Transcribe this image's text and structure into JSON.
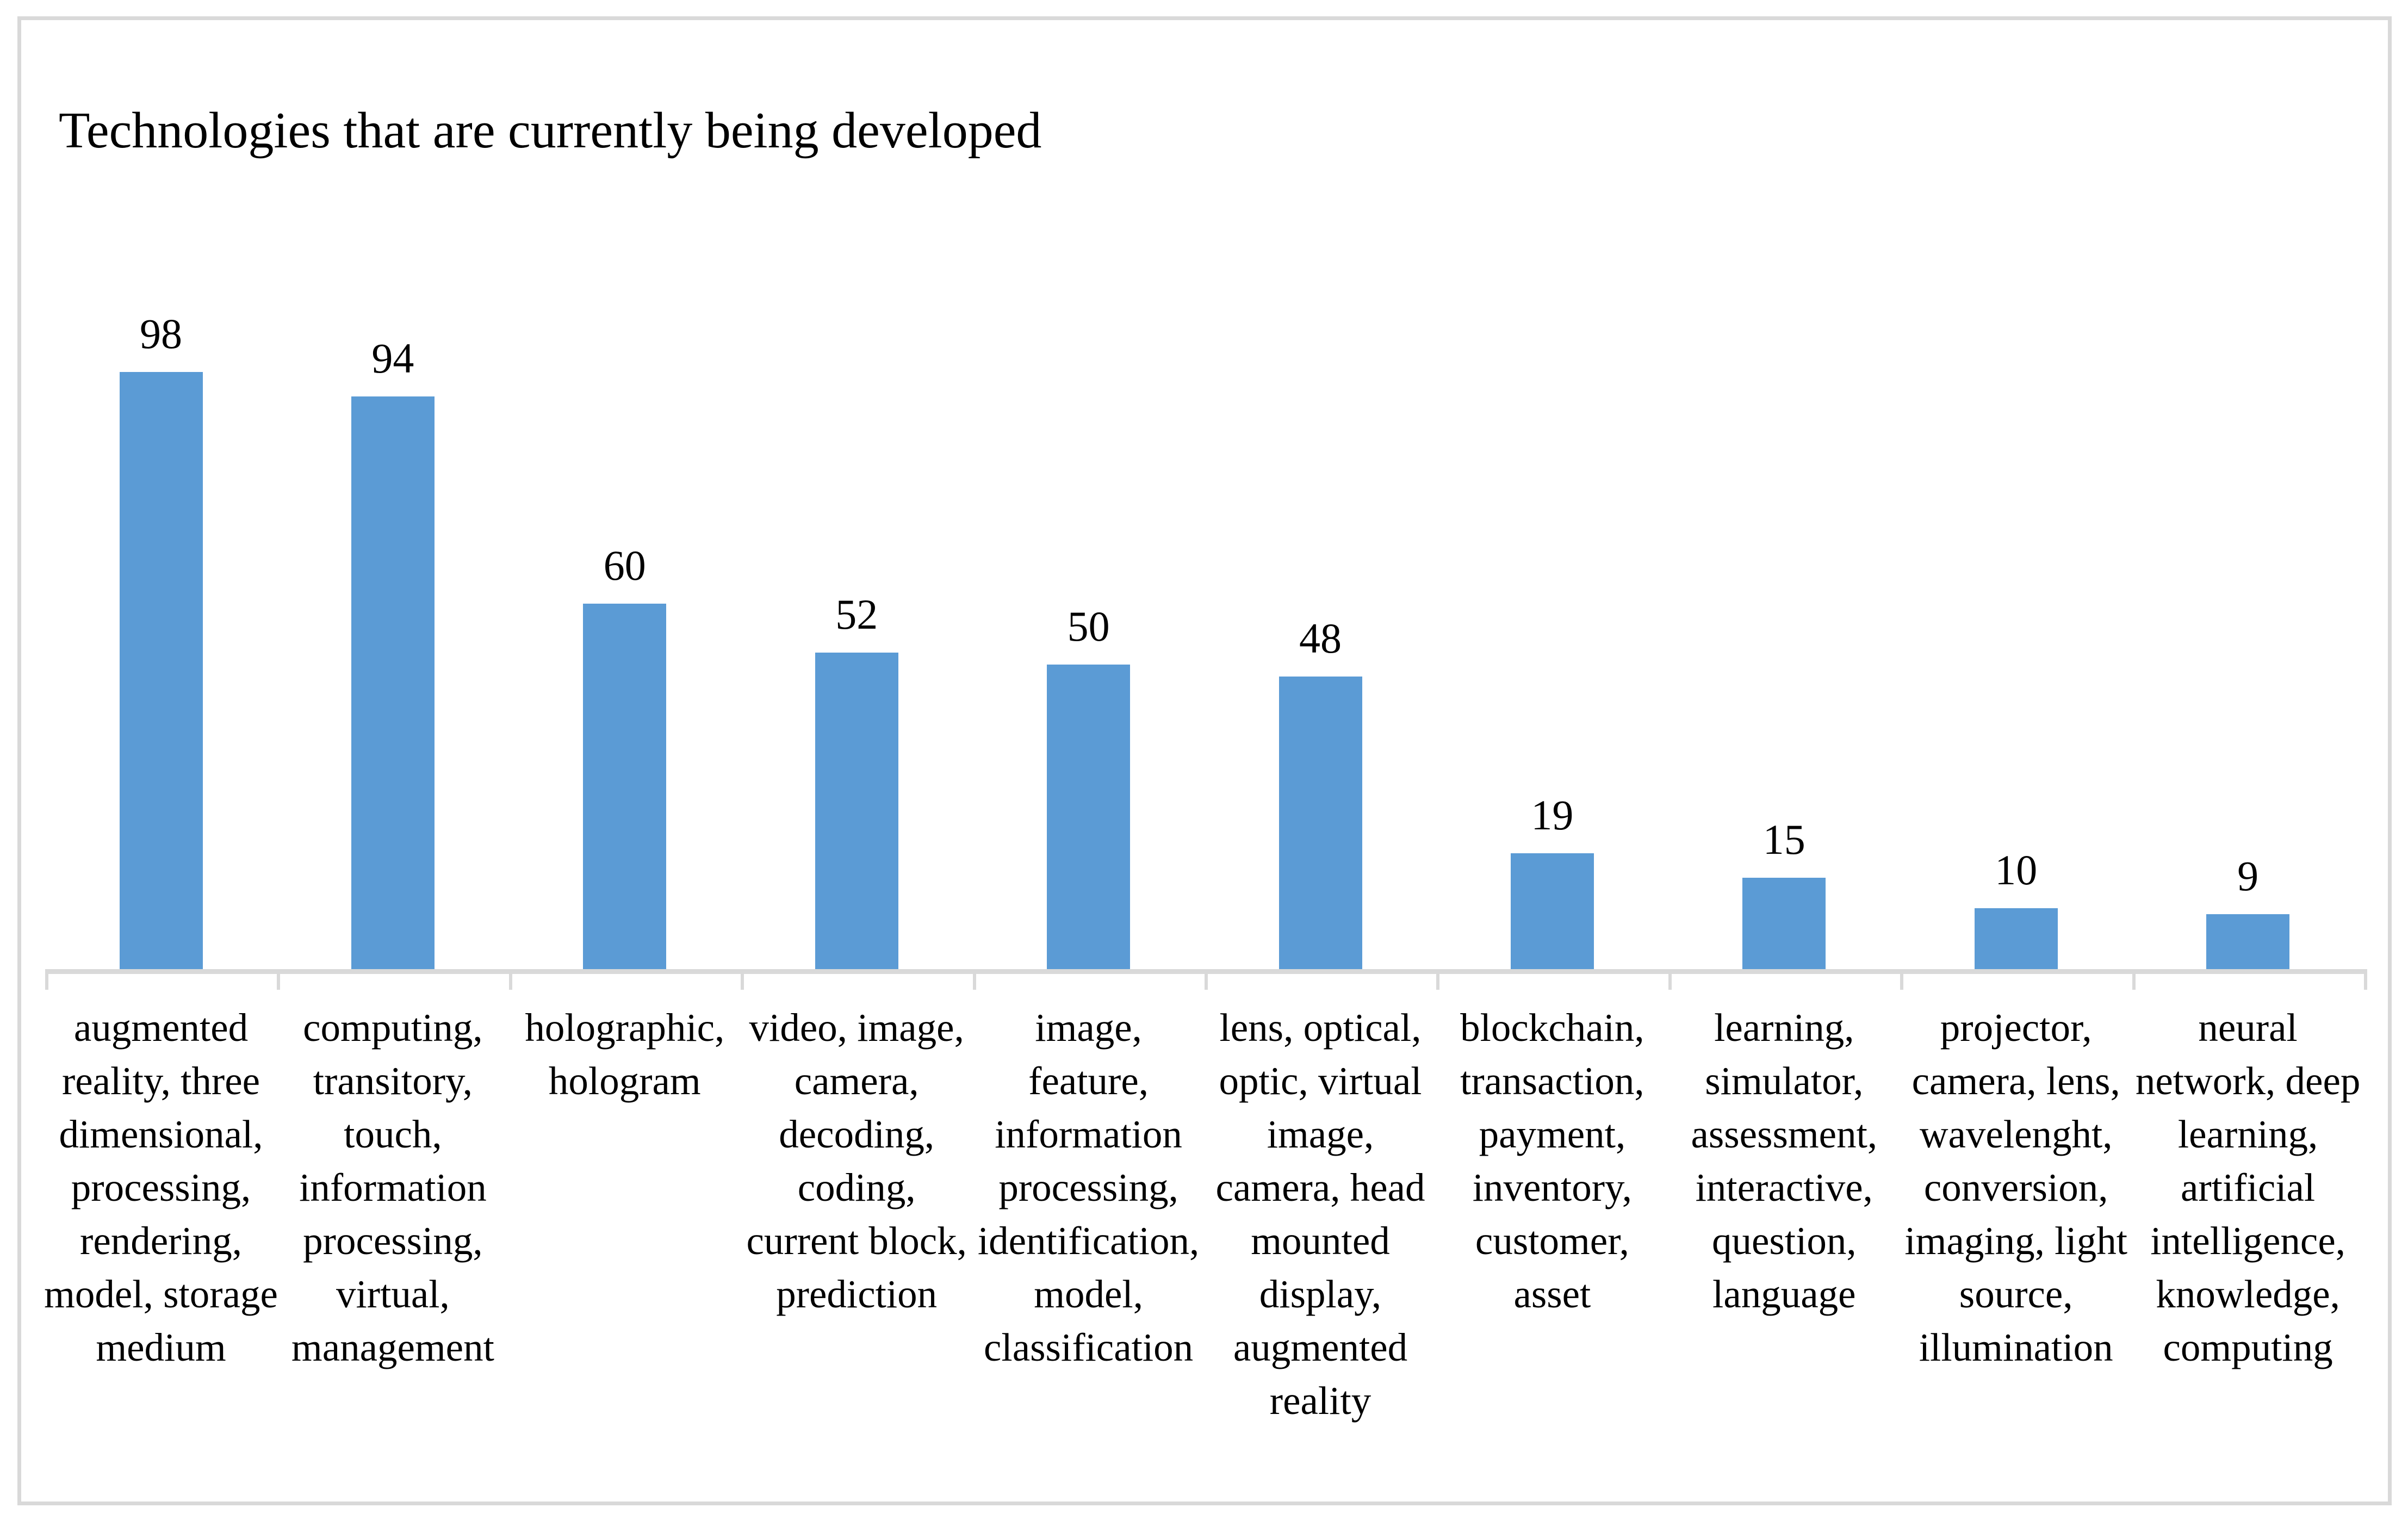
{
  "chart_data": {
    "type": "bar",
    "title": "Technologies that are currently being developed",
    "categories": [
      "augmented reality, three dimensional, processing, rendering, model, storage medium",
      "computing, transitory, touch, information processing, virtual, management",
      "holographic, hologram",
      "video, image, camera, decoding, coding, current block, prediction",
      "image, feature, information processing, identification, model, classification",
      "lens, optical, optic, virtual image, camera, head mounted display, augmented reality",
      "blockchain, transaction, payment, inventory, customer, asset",
      "learning, simulator, assessment, interactive, question, language",
      "projector, camera, lens, wavelenght, conversion, imaging, light source, illumination",
      "neural network, deep learning, artificial intelligence, knowledge, computing"
    ],
    "category_lines": [
      "augmented\nreality, three\ndimensional,\nprocessing,\nrendering,\nmodel, storage\nmedium",
      "computing,\ntransitory,\ntouch,\ninformation\nprocessing,\nvirtual,\nmanagement",
      "holographic,\nhologram",
      "video, image,\ncamera,\ndecoding,\ncoding,\ncurrent block,\nprediction",
      "image,\nfeature,\ninformation\nprocessing,\nidentification,\nmodel,\nclassification",
      "lens, optical,\noptic, virtual\nimage,\ncamera, head\nmounted\ndisplay,\naugmented\nreality",
      "blockchain,\ntransaction,\npayment,\ninventory,\ncustomer,\nasset",
      "learning,\nsimulator,\nassessment,\ninteractive,\nquestion,\nlanguage",
      "projector,\ncamera, lens,\nwavelenght,\nconversion,\nimaging, light\nsource,\nillumination",
      "neural\nnetwork, deep\nlearning,\nartificial\nintelligence,\nknowledge,\ncomputing"
    ],
    "values": [
      98,
      94,
      60,
      52,
      50,
      48,
      19,
      15,
      10,
      9
    ],
    "xlabel": "",
    "ylabel": "",
    "ylim": [
      0,
      100
    ],
    "grid": false,
    "legend": "none",
    "value_labels": "above-bars",
    "bar_color": "#5B9BD5",
    "axis_color": "#D9D9D9",
    "frame_color": "#D9D9D9",
    "text_color": "#000000"
  }
}
